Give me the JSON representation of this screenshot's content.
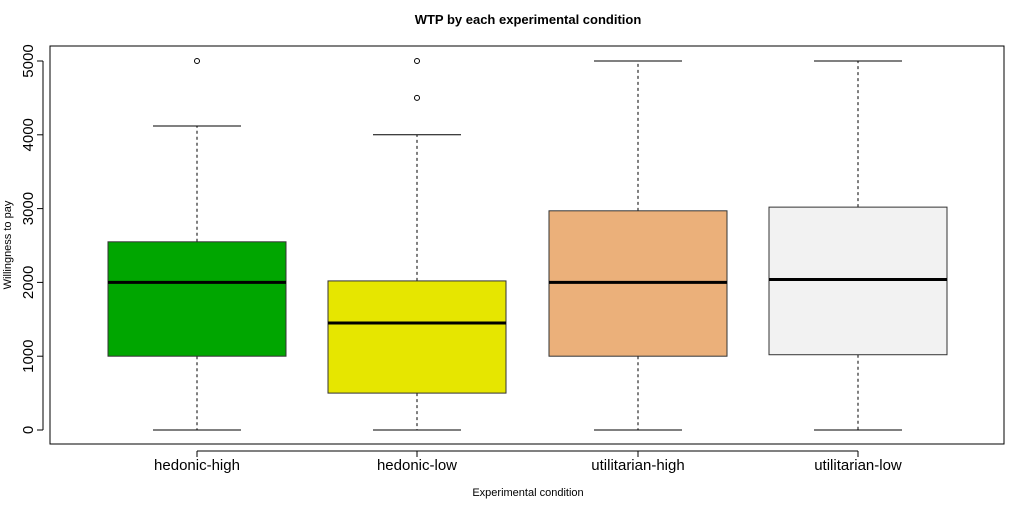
{
  "chart_data": {
    "type": "boxplot",
    "title": "WTP by each experimental condition",
    "xlabel": "Experimental condition",
    "ylabel": "Willingness to pay",
    "ylim": [
      -200,
      5200
    ],
    "yticks": [
      0,
      1000,
      2000,
      3000,
      4000,
      5000
    ],
    "grid": false,
    "legend": "none",
    "categories": [
      "hedonic-high",
      "hedonic-low",
      "utilitarian-high",
      "utilitarian-low"
    ],
    "boxes": [
      {
        "category": "hedonic-high",
        "min": 0,
        "q1": 1000,
        "median": 2000,
        "q3": 2550,
        "max": 4120,
        "outliers": [
          5000
        ],
        "color": "#00a600"
      },
      {
        "category": "hedonic-low",
        "min": 0,
        "q1": 500,
        "median": 1450,
        "q3": 2020,
        "max": 4000,
        "outliers": [
          4500,
          5000
        ],
        "color": "#e6e600"
      },
      {
        "category": "utilitarian-high",
        "min": 0,
        "q1": 1000,
        "median": 2000,
        "q3": 2970,
        "max": 5000,
        "outliers": [],
        "color": "#ebb07a"
      },
      {
        "category": "utilitarian-low",
        "min": 0,
        "q1": 1020,
        "median": 2040,
        "q3": 3020,
        "max": 5000,
        "outliers": [],
        "color": "#f2f2f2"
      }
    ]
  }
}
